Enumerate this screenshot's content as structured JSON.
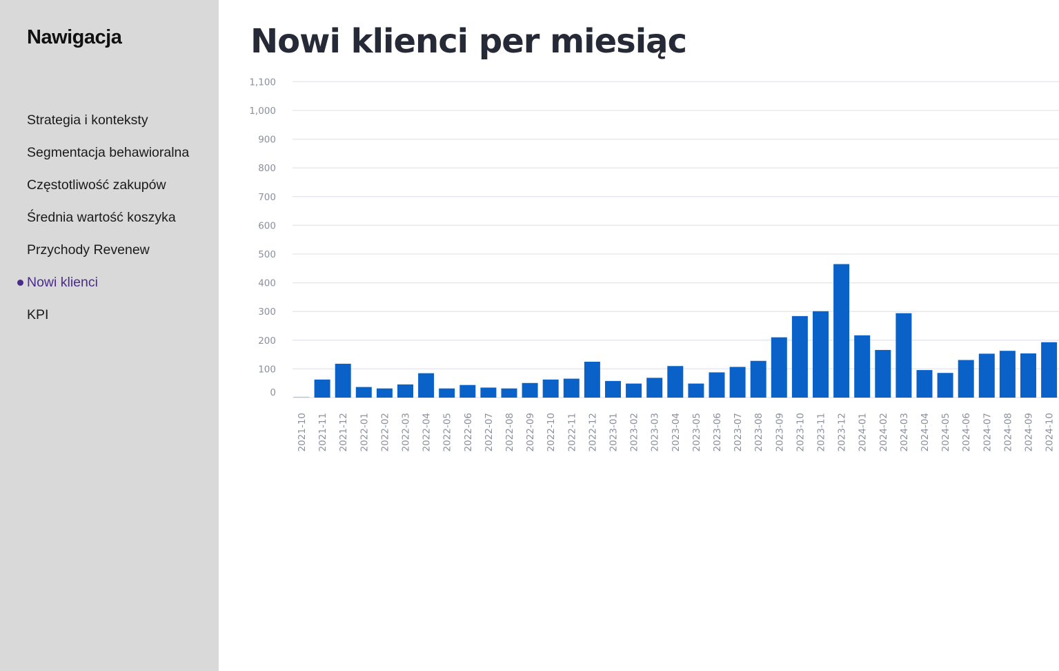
{
  "sidebar": {
    "title": "Nawigacja",
    "items": [
      {
        "label": "Strategia i konteksty",
        "active": false
      },
      {
        "label": "Segmentacja behawioralna",
        "active": false
      },
      {
        "label": "Częstotliwość zakupów",
        "active": false
      },
      {
        "label": "Średnia wartość koszyka",
        "active": false
      },
      {
        "label": "Przychody Revenew",
        "active": false
      },
      {
        "label": "Nowi klienci",
        "active": true
      },
      {
        "label": "KPI",
        "active": false
      }
    ],
    "active_color": "#4b2a8c"
  },
  "main": {
    "title": "Nowi klienci per miesiąc"
  },
  "chart_data": {
    "type": "bar",
    "title": "",
    "xlabel": "",
    "ylabel": "",
    "ylim": [
      0,
      1100
    ],
    "yticks": [
      0,
      100,
      200,
      300,
      400,
      500,
      600,
      700,
      800,
      900,
      1000,
      1100
    ],
    "ytick_labels": [
      "0",
      "100",
      "200",
      "300",
      "400",
      "500",
      "600",
      "700",
      "800",
      "900",
      "1,000",
      "1,100"
    ],
    "grid": true,
    "bar_color": "#0a62c9",
    "categories": [
      "2021-10",
      "2021-11",
      "2021-12",
      "2022-01",
      "2022-02",
      "2022-03",
      "2022-04",
      "2022-05",
      "2022-06",
      "2022-07",
      "2022-08",
      "2022-09",
      "2022-10",
      "2022-11",
      "2022-12",
      "2023-01",
      "2023-02",
      "2023-03",
      "2023-04",
      "2023-05",
      "2023-06",
      "2023-07",
      "2023-08",
      "2023-09",
      "2023-10",
      "2023-11",
      "2023-12",
      "2024-01",
      "2024-02",
      "2024-03",
      "2024-04",
      "2024-05",
      "2024-06",
      "2024-07",
      "2024-08",
      "2024-09",
      "2024-10"
    ],
    "values": [
      3,
      63,
      118,
      37,
      32,
      46,
      85,
      32,
      44,
      35,
      32,
      51,
      63,
      66,
      125,
      58,
      49,
      69,
      110,
      49,
      88,
      107,
      128,
      210,
      284,
      301,
      465,
      217,
      166,
      294,
      96,
      86,
      131,
      153,
      163,
      154,
      193
    ]
  }
}
